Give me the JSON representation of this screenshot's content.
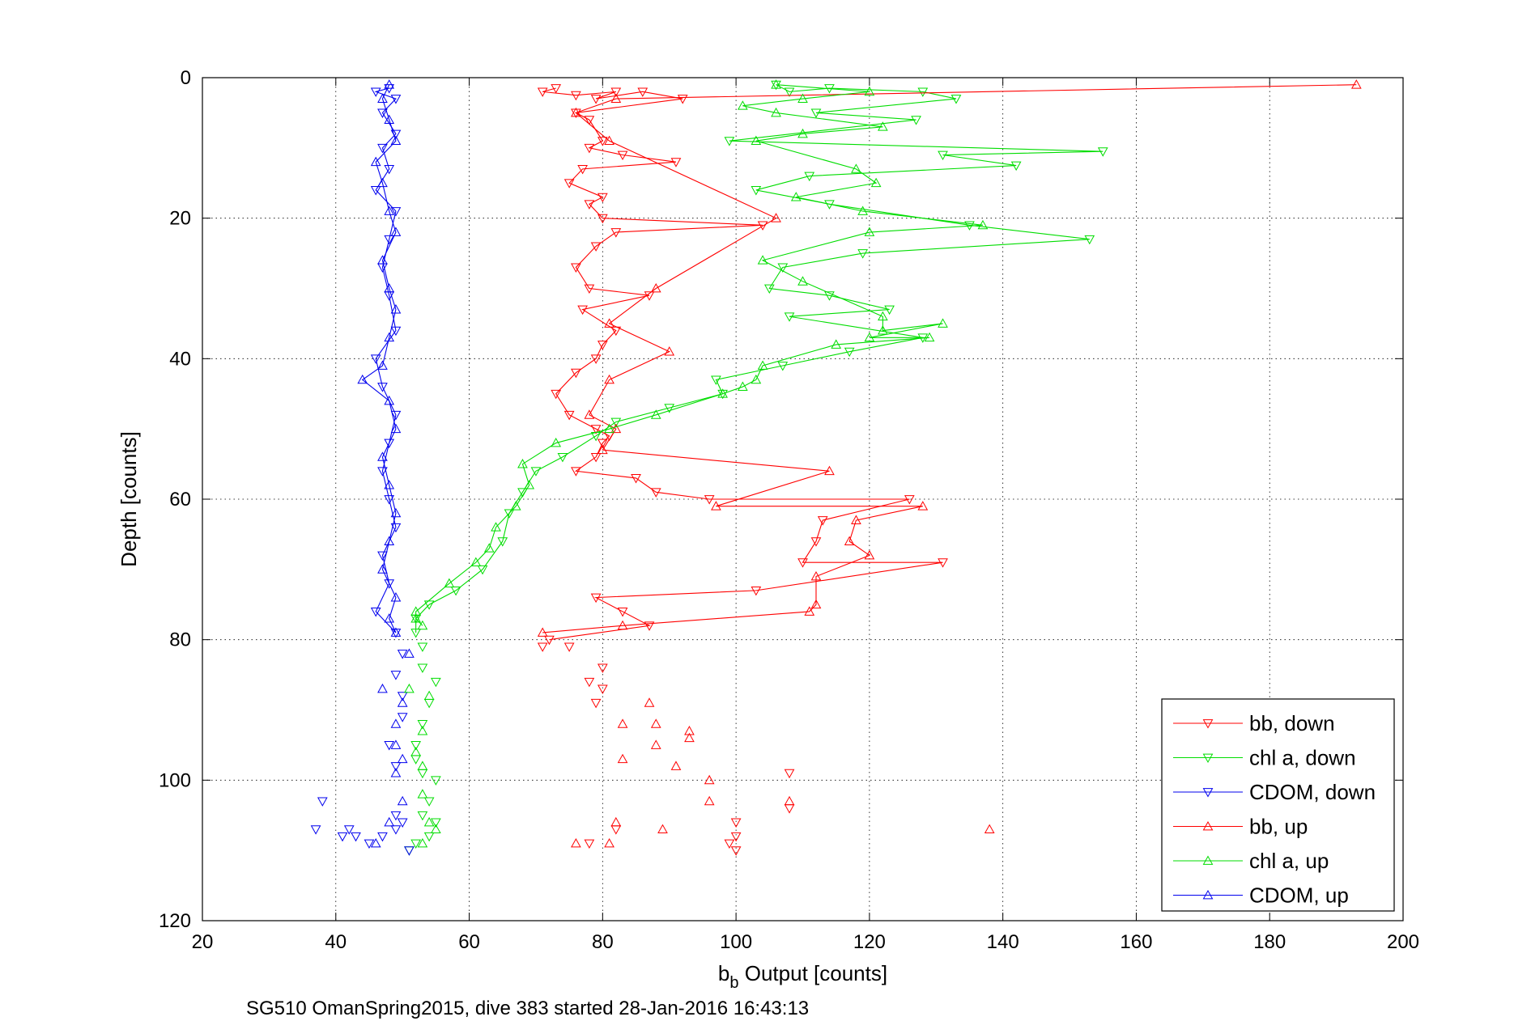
{
  "caption": "SG510 OmanSpring2015, dive 383 started 28-Jan-2016 16:43:13",
  "chart_data": {
    "type": "scatter",
    "xlabel_main": "b",
    "xlabel_sub": "b",
    "xlabel_rest": " Output [counts]",
    "ylabel": "Depth [counts]",
    "xlim": [
      20,
      200
    ],
    "ylim": [
      0,
      120
    ],
    "y_reversed": true,
    "grid": true,
    "legend_position": "bottom-right",
    "xticks": [
      "20",
      "40",
      "60",
      "80",
      "100",
      "120",
      "140",
      "160",
      "180",
      "200"
    ],
    "yticks": [
      "0",
      "20",
      "40",
      "60",
      "80",
      "100",
      "120"
    ],
    "series": [
      {
        "name": "bb, down",
        "color": "#ff0000",
        "marker": "triangle-down",
        "points": [
          [
            73,
            1.5
          ],
          [
            71,
            2
          ],
          [
            76,
            2.5
          ],
          [
            82,
            2
          ],
          [
            79,
            3
          ],
          [
            86,
            2
          ],
          [
            92,
            3
          ],
          [
            76,
            5
          ],
          [
            78,
            6
          ],
          [
            80,
            9
          ],
          [
            78,
            10
          ],
          [
            83,
            11
          ],
          [
            91,
            12
          ],
          [
            77,
            13
          ],
          [
            75,
            15
          ],
          [
            80,
            17
          ],
          [
            78,
            18
          ],
          [
            80,
            20
          ],
          [
            104,
            21
          ],
          [
            82,
            22
          ],
          [
            79,
            24
          ],
          [
            76,
            27
          ],
          [
            78,
            30
          ],
          [
            87,
            31
          ],
          [
            77,
            33
          ],
          [
            82,
            36
          ],
          [
            80,
            38
          ],
          [
            79,
            40
          ],
          [
            76,
            42
          ],
          [
            73,
            45
          ],
          [
            75,
            48
          ],
          [
            79,
            50
          ],
          [
            81,
            51
          ],
          [
            80,
            52
          ],
          [
            79,
            54
          ],
          [
            76,
            56
          ],
          [
            85,
            57
          ],
          [
            88,
            59
          ],
          [
            96,
            60
          ],
          [
            126,
            60
          ],
          [
            113,
            63
          ],
          [
            112,
            66
          ],
          [
            110,
            69
          ],
          [
            131,
            69
          ],
          [
            103,
            73
          ],
          [
            79,
            74
          ],
          [
            83,
            76
          ],
          [
            87,
            78
          ],
          [
            72,
            80
          ],
          [
            71,
            81
          ],
          [
            75,
            81
          ],
          [
            80,
            84
          ],
          [
            78,
            86
          ],
          [
            80,
            87
          ],
          [
            79,
            89
          ],
          [
            108,
            99
          ],
          [
            108,
            104
          ],
          [
            100,
            106
          ],
          [
            82,
            107
          ],
          [
            78,
            109
          ],
          [
            100,
            108
          ],
          [
            99,
            109
          ],
          [
            100,
            110
          ]
        ]
      },
      {
        "name": "chl a, down",
        "color": "#00dd00",
        "marker": "triangle-down",
        "points": [
          [
            106,
            1
          ],
          [
            108,
            2
          ],
          [
            114,
            1.5
          ],
          [
            128,
            2
          ],
          [
            133,
            3
          ],
          [
            112,
            5
          ],
          [
            127,
            6
          ],
          [
            99,
            9
          ],
          [
            155,
            10.5
          ],
          [
            131,
            11
          ],
          [
            142,
            12.5
          ],
          [
            111,
            14
          ],
          [
            103,
            16
          ],
          [
            114,
            18
          ],
          [
            135,
            21
          ],
          [
            153,
            23
          ],
          [
            119,
            25
          ],
          [
            107,
            27
          ],
          [
            105,
            30
          ],
          [
            114,
            31
          ],
          [
            123,
            33
          ],
          [
            108,
            34
          ],
          [
            128,
            37
          ],
          [
            117,
            39
          ],
          [
            107,
            41
          ],
          [
            97,
            43
          ],
          [
            98,
            45
          ],
          [
            90,
            47
          ],
          [
            82,
            49
          ],
          [
            79,
            51
          ],
          [
            74,
            54
          ],
          [
            70,
            56
          ],
          [
            68,
            59
          ],
          [
            66,
            62
          ],
          [
            65,
            66
          ],
          [
            62,
            70
          ],
          [
            58,
            73
          ],
          [
            54,
            75
          ],
          [
            52,
            77
          ],
          [
            52,
            79
          ],
          [
            53,
            81
          ],
          [
            53,
            84
          ],
          [
            55,
            86
          ],
          [
            54,
            89
          ],
          [
            53,
            92
          ],
          [
            52,
            95
          ],
          [
            52,
            97
          ],
          [
            53,
            99
          ],
          [
            55,
            100
          ],
          [
            54,
            103
          ],
          [
            53,
            105
          ],
          [
            55,
            106
          ],
          [
            54,
            108
          ],
          [
            52,
            109
          ],
          [
            51,
            110
          ]
        ]
      },
      {
        "name": "CDOM, down",
        "color": "#0000ee",
        "marker": "triangle-down",
        "points": [
          [
            48,
            1.5
          ],
          [
            46,
            2
          ],
          [
            49,
            3
          ],
          [
            47,
            5
          ],
          [
            49,
            8
          ],
          [
            47,
            10
          ],
          [
            48,
            13
          ],
          [
            46,
            16
          ],
          [
            49,
            19
          ],
          [
            48,
            23
          ],
          [
            47,
            27
          ],
          [
            48,
            31
          ],
          [
            49,
            36
          ],
          [
            46,
            40
          ],
          [
            47,
            44
          ],
          [
            49,
            48
          ],
          [
            48,
            52
          ],
          [
            47,
            56
          ],
          [
            48,
            60
          ],
          [
            49,
            64
          ],
          [
            47,
            68
          ],
          [
            48,
            72
          ],
          [
            46,
            76
          ],
          [
            49,
            79
          ],
          [
            50,
            82
          ],
          [
            49,
            85
          ],
          [
            50,
            88
          ],
          [
            50,
            91
          ],
          [
            48,
            95
          ],
          [
            49,
            98
          ],
          [
            38,
            103
          ],
          [
            42,
            107
          ],
          [
            37,
            107
          ],
          [
            41,
            108
          ],
          [
            43,
            108
          ],
          [
            45,
            109
          ],
          [
            47,
            108
          ],
          [
            49,
            107
          ],
          [
            50,
            106
          ],
          [
            49,
            105
          ],
          [
            51,
            110
          ]
        ]
      },
      {
        "name": "bb, up",
        "color": "#ff0000",
        "marker": "triangle-up",
        "points": [
          [
            193,
            1
          ],
          [
            82,
            3
          ],
          [
            76,
            5
          ],
          [
            81,
            9
          ],
          [
            106,
            20
          ],
          [
            88,
            30
          ],
          [
            81,
            35
          ],
          [
            90,
            39
          ],
          [
            81,
            43
          ],
          [
            78,
            48
          ],
          [
            82,
            50
          ],
          [
            80,
            53
          ],
          [
            114,
            56
          ],
          [
            97,
            61
          ],
          [
            128,
            61
          ],
          [
            118,
            63
          ],
          [
            117,
            66
          ],
          [
            120,
            68
          ],
          [
            112,
            71
          ],
          [
            112,
            75
          ],
          [
            111,
            76
          ],
          [
            83,
            78
          ],
          [
            71,
            79
          ],
          [
            87,
            89
          ],
          [
            83,
            92
          ],
          [
            88,
            92
          ],
          [
            93,
            93
          ],
          [
            93,
            94
          ],
          [
            88,
            95
          ],
          [
            83,
            97
          ],
          [
            91,
            98
          ],
          [
            96,
            100
          ],
          [
            96,
            103
          ],
          [
            108,
            103
          ],
          [
            138,
            107
          ],
          [
            82,
            106
          ],
          [
            89,
            107
          ],
          [
            76,
            109
          ],
          [
            81,
            109
          ]
        ]
      },
      {
        "name": "chl a, up",
        "color": "#00dd00",
        "marker": "triangle-up",
        "points": [
          [
            106,
            1
          ],
          [
            120,
            2
          ],
          [
            110,
            3
          ],
          [
            101,
            4
          ],
          [
            106,
            5
          ],
          [
            122,
            7
          ],
          [
            110,
            8
          ],
          [
            103,
            9
          ],
          [
            118,
            13
          ],
          [
            121,
            15
          ],
          [
            109,
            17
          ],
          [
            119,
            19
          ],
          [
            137,
            21
          ],
          [
            120,
            22
          ],
          [
            104,
            26
          ],
          [
            110,
            29
          ],
          [
            122,
            34
          ],
          [
            122,
            36
          ],
          [
            131,
            35
          ],
          [
            120,
            37
          ],
          [
            129,
            37
          ],
          [
            115,
            38
          ],
          [
            104,
            41
          ],
          [
            103,
            43
          ],
          [
            101,
            44
          ],
          [
            98,
            45
          ],
          [
            88,
            48
          ],
          [
            81,
            50
          ],
          [
            73,
            52
          ],
          [
            68,
            55
          ],
          [
            69,
            58
          ],
          [
            67,
            61
          ],
          [
            64,
            64
          ],
          [
            63,
            67
          ],
          [
            61,
            69
          ],
          [
            57,
            72
          ],
          [
            52,
            76
          ],
          [
            52,
            77
          ],
          [
            53,
            78
          ],
          [
            51,
            87
          ],
          [
            54,
            88
          ],
          [
            53,
            93
          ],
          [
            52,
            96
          ],
          [
            53,
            98
          ],
          [
            53,
            102
          ],
          [
            54,
            106
          ],
          [
            55,
            107
          ],
          [
            53,
            109
          ]
        ]
      },
      {
        "name": "CDOM, up",
        "color": "#0000ee",
        "marker": "triangle-up",
        "points": [
          [
            48,
            1
          ],
          [
            47,
            3
          ],
          [
            48,
            6
          ],
          [
            49,
            9
          ],
          [
            46,
            12
          ],
          [
            47,
            15
          ],
          [
            48,
            19
          ],
          [
            49,
            22
          ],
          [
            47,
            26
          ],
          [
            48,
            30
          ],
          [
            49,
            33
          ],
          [
            48,
            37
          ],
          [
            47,
            41
          ],
          [
            44,
            43
          ],
          [
            48,
            46
          ],
          [
            49,
            50
          ],
          [
            47,
            54
          ],
          [
            48,
            58
          ],
          [
            49,
            62
          ],
          [
            48,
            66
          ],
          [
            47,
            70
          ],
          [
            49,
            74
          ],
          [
            48,
            77
          ],
          [
            49,
            79
          ],
          [
            51,
            82
          ],
          [
            47,
            87
          ],
          [
            50,
            89
          ],
          [
            49,
            92
          ],
          [
            49,
            95
          ],
          [
            50,
            97
          ],
          [
            46,
            109
          ],
          [
            48,
            106
          ],
          [
            49,
            99
          ],
          [
            50,
            103
          ]
        ]
      }
    ]
  }
}
